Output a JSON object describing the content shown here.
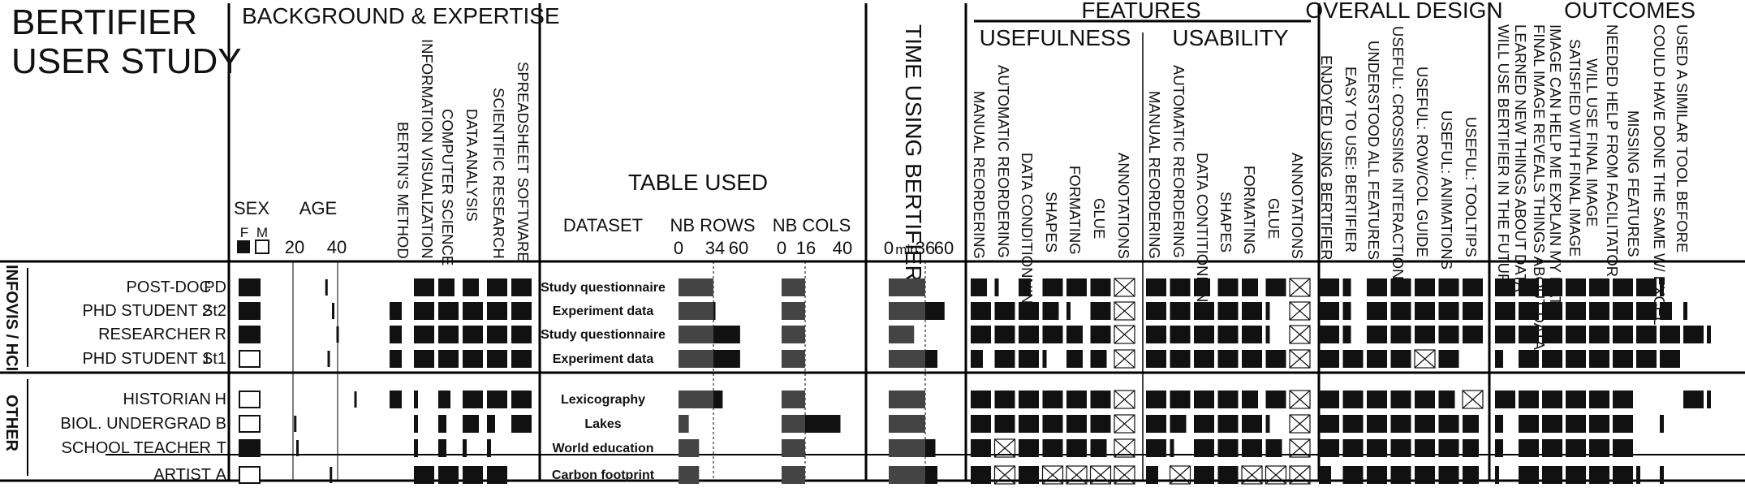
{
  "title": [
    "BERTIFIER",
    "USER STUDY"
  ],
  "sections": {
    "background": "BACKGROUND & EXPERTISE",
    "table_used": "TABLE USED",
    "time": "TIME USING BERTIFIER",
    "features": "FEATURES",
    "usefulness": "USEFULNESS",
    "usability": "USABILITY",
    "overall": "OVERALL DESIGN",
    "outcomes": "OUTCOMES"
  },
  "subheaders": {
    "sex": "SEX",
    "sex_f": "F",
    "sex_m": "M",
    "age": "AGE",
    "age_ticks": [
      "20",
      "40"
    ],
    "dataset": "DATASET",
    "nb_rows": "NB ROWS",
    "nb_rows_ticks": [
      "0",
      "34",
      "60"
    ],
    "nb_cols": "NB COLS",
    "nb_cols_ticks": [
      "0",
      "16",
      "40"
    ],
    "time_ticks": [
      "0",
      "min",
      "36",
      "60"
    ]
  },
  "groups": [
    "INFOVIS / HCI",
    "OTHER"
  ],
  "expertise_cols": [
    "BERTIN'S METHOD",
    "INFORMATION VISUALIZATION",
    "COMPUTER SCIENCE",
    "DATA ANALYSIS",
    "SCIENTIFIC RESEARCH",
    "SPREADSHEET SOFTWARE"
  ],
  "usefulness_cols": [
    "MANUAL REORDERING",
    "AUTOMATIC REORDERING",
    "DATA CONDITIONNING",
    "SHAPES",
    "FORMATING",
    "GLUE",
    "ANNOTATIONS"
  ],
  "usability_cols": [
    "MANUAL REORDERING",
    "AUTOMATIC REORDERING",
    "DATA CONTITIONNING",
    "SHAPES",
    "FORMATING",
    "GLUE",
    "ANNOTATIONS"
  ],
  "overall_cols": [
    "ENJOYED USING BERTIFIER",
    "EASY TO USE: BERTIFIER",
    "UNDERSTOOD ALL FEATURES",
    "USEFUL: CROSSING INTERACTIONS",
    "USEFUL: ROW/COL GUIDE",
    "USEFUL: ANIMATIONS",
    "USEFUL: TOOLTIPS"
  ],
  "outcomes_cols": [
    "WILL USE BERTIFIER IN THE FUTURE",
    "LEARNED NEW THINGS ABOUT DATA",
    "FINAL IMAGE REVEALS THINGS ABOUT DATA",
    "IMAGE CAN HELP ME EXPLAIN MY DATA",
    "SATISFIED WITH FINAL IMAGE",
    "WILL USE FINAL IMAGE",
    "NEEDED HELP FROM FACILITATOR",
    "MISSING FEATURES",
    "COULD HAVE DONE THE SAME W/ EXCEL",
    "USED A SIMILAR TOOL BEFORE"
  ],
  "chart_data": {
    "type": "table",
    "scale_note": "cell values are Likert levels 0-5 shown as bar length; null = not applicable (cross)",
    "participants": [
      {
        "role": "POST-DOC",
        "code": "PD",
        "group": "INFOVIS / HCI",
        "sex": "F",
        "age": 35,
        "expertise": [
          0,
          5,
          4,
          4,
          5,
          5
        ],
        "dataset": "Study questionnaire",
        "nb_rows": 34,
        "nb_cols": 16,
        "time": 36,
        "usefulness": [
          4,
          1,
          3,
          5,
          5,
          5,
          null
        ],
        "usability": [
          5,
          5,
          4,
          5,
          4,
          5,
          null
        ],
        "overall": [
          5,
          2,
          5,
          5,
          5,
          5,
          5
        ],
        "outcomes": [
          5,
          5,
          5,
          5,
          5,
          5,
          5,
          1,
          0,
          0
        ]
      },
      {
        "role": "PHD STUDENT 2",
        "code": "St2",
        "group": "INFOVIS / HCI",
        "sex": "F",
        "age": 38,
        "expertise": [
          3,
          5,
          5,
          5,
          5,
          5
        ],
        "dataset": "Experiment data",
        "nb_rows": 36,
        "nb_cols": 16,
        "time": 55,
        "usefulness": [
          5,
          5,
          5,
          4,
          1,
          5,
          null
        ],
        "usability": [
          5,
          5,
          5,
          5,
          5,
          1,
          null
        ],
        "overall": [
          5,
          2,
          5,
          5,
          5,
          5,
          5
        ],
        "outcomes": [
          5,
          5,
          5,
          5,
          5,
          5,
          5,
          3,
          1,
          0
        ]
      },
      {
        "role": "RESEARCHER",
        "code": "R",
        "group": "INFOVIS / HCI",
        "sex": "F",
        "age": 40,
        "expertise": [
          3,
          5,
          5,
          5,
          5,
          5
        ],
        "dataset": "Study questionnaire",
        "nb_rows": 60,
        "nb_cols": 16,
        "time": 25,
        "usefulness": [
          5,
          5,
          5,
          5,
          4,
          5,
          null
        ],
        "usability": [
          5,
          5,
          5,
          5,
          5,
          1,
          null
        ],
        "overall": [
          5,
          2,
          5,
          5,
          5,
          5,
          5
        ],
        "outcomes": [
          5,
          5,
          5,
          5,
          5,
          5,
          5,
          5,
          5,
          1
        ]
      },
      {
        "role": "PHD STUDENT 1",
        "code": "St1",
        "group": "INFOVIS / HCI",
        "sex": "M",
        "age": 36,
        "expertise": [
          3,
          5,
          5,
          5,
          5,
          5
        ],
        "dataset": "Experiment data",
        "nb_rows": 60,
        "nb_cols": 16,
        "time": 48,
        "usefulness": [
          3,
          5,
          5,
          1,
          4,
          4,
          null
        ],
        "usability": [
          5,
          5,
          5,
          5,
          5,
          5,
          null
        ],
        "overall": [
          5,
          5,
          5,
          5,
          null,
          5,
          0
        ],
        "outcomes": [
          2,
          5,
          5,
          5,
          5,
          5,
          5,
          5,
          0,
          0
        ]
      },
      {
        "role": "HISTORIAN",
        "code": "H",
        "group": "OTHER",
        "sex": "M",
        "age": 48,
        "expertise": [
          3,
          1,
          3,
          5,
          5,
          5
        ],
        "dataset": "Lexicography",
        "nb_rows": 43,
        "nb_cols": 16,
        "time": 36,
        "usefulness": [
          5,
          5,
          5,
          5,
          5,
          5,
          null
        ],
        "usability": [
          5,
          5,
          5,
          5,
          4,
          5,
          null
        ],
        "overall": [
          5,
          5,
          5,
          5,
          5,
          4,
          null
        ],
        "outcomes": [
          5,
          5,
          5,
          5,
          5,
          5,
          0,
          0,
          5,
          1
        ]
      },
      {
        "role": "BIOL. UNDERGRAD",
        "code": "B",
        "group": "OTHER",
        "sex": "M",
        "age": 21,
        "expertise": [
          0,
          1,
          2,
          4,
          2,
          5
        ],
        "dataset": "Lakes",
        "nb_rows": 10,
        "nb_cols": 40,
        "time": 36,
        "usefulness": [
          5,
          5,
          5,
          5,
          5,
          5,
          null
        ],
        "usability": [
          5,
          4,
          5,
          5,
          5,
          1,
          null
        ],
        "overall": [
          5,
          5,
          5,
          5,
          5,
          5,
          4
        ],
        "outcomes": [
          2,
          5,
          5,
          5,
          5,
          5,
          0,
          1,
          0,
          0
        ]
      },
      {
        "role": "SCHOOL TEACHER",
        "code": "T",
        "group": "OTHER",
        "sex": "F",
        "age": 22,
        "expertise": [
          0,
          1,
          2,
          1,
          1,
          0
        ],
        "dataset": "World education",
        "nb_rows": 20,
        "nb_cols": 16,
        "time": 46,
        "usefulness": [
          5,
          null,
          5,
          5,
          5,
          4,
          null
        ],
        "usability": [
          5,
          1,
          5,
          5,
          5,
          4,
          null
        ],
        "overall": [
          5,
          5,
          5,
          5,
          5,
          5,
          4
        ],
        "outcomes": [
          2,
          5,
          5,
          5,
          5,
          5,
          0,
          0,
          0,
          0
        ]
      },
      {
        "role": "ARTIST",
        "code": "A",
        "group": "OTHER",
        "sex": "M",
        "age": 37,
        "expertise": [
          0,
          5,
          5,
          5,
          5,
          0
        ],
        "dataset": "Carbon footprint",
        "nb_rows": 20,
        "nb_cols": 16,
        "time": 48,
        "usefulness": [
          5,
          null,
          5,
          null,
          null,
          null,
          null
        ],
        "usability": [
          3,
          null,
          5,
          5,
          null,
          null,
          null
        ],
        "overall": [
          3,
          5,
          5,
          5,
          5,
          5,
          4
        ],
        "outcomes": [
          1,
          5,
          5,
          5,
          5,
          5,
          1,
          1,
          0,
          0
        ]
      }
    ]
  }
}
